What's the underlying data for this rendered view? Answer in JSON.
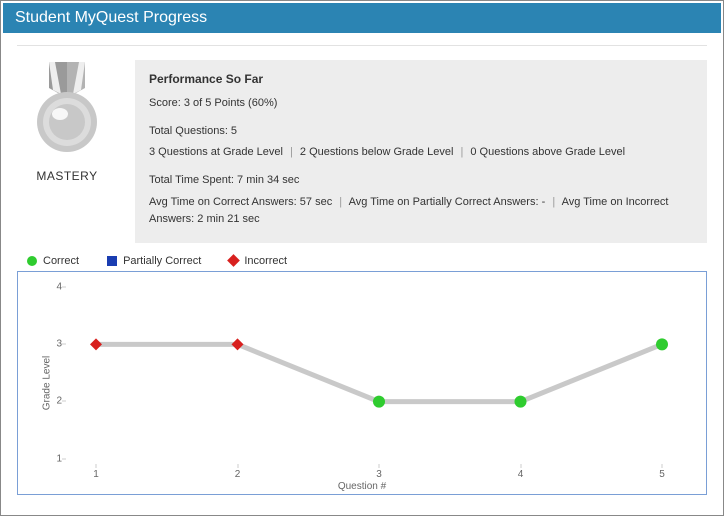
{
  "header": {
    "title": "Student MyQuest Progress"
  },
  "badge": {
    "label": "MASTERY",
    "ribbon_color": "#9a9a9a",
    "disc_outer": "#c8c8c8",
    "disc_inner": "#dcdcdc",
    "disc_shine": "#ffffff"
  },
  "performance": {
    "title": "Performance So Far",
    "score_line": "Score: 3 of 5 Points (60%)",
    "total_questions": "Total Questions: 5",
    "grade_breakdown": {
      "at": "3 Questions at Grade Level",
      "below": "2 Questions below Grade Level",
      "above": "0 Questions above Grade Level"
    },
    "time_total": "Total Time Spent: 7 min 34 sec",
    "time_correct": "Avg Time on Correct Answers: 57 sec",
    "time_partial": "Avg Time on Partially Correct Answers: -",
    "time_incorrect": "Avg Time on Incorrect Answers: 2 min 21 sec",
    "panel_bg": "#ededed"
  },
  "legend": {
    "items": [
      {
        "label": "Correct",
        "shape": "circle",
        "color": "#2fcc2f"
      },
      {
        "label": "Partially Correct",
        "shape": "square",
        "color": "#1a3db1"
      },
      {
        "label": "Incorrect",
        "shape": "diamond",
        "color": "#d8201e"
      }
    ]
  },
  "chart": {
    "type": "line-scatter",
    "x_label": "Question #",
    "y_label": "Grade Level",
    "xlim": [
      1,
      5
    ],
    "ylim": [
      1,
      4
    ],
    "yticks": [
      1,
      2,
      3,
      4
    ],
    "xticks": [
      1,
      2,
      3,
      4,
      5
    ],
    "line_color": "#c9c9c9",
    "line_width": 5,
    "marker_radius": 6,
    "border_color": "#7a9fd6",
    "background": "#ffffff",
    "tick_font_size": 10,
    "label_font_size": 10,
    "tick_color": "#666666",
    "points": [
      {
        "x": 1,
        "y": 3,
        "status": "incorrect",
        "color": "#d8201e",
        "shape": "diamond"
      },
      {
        "x": 2,
        "y": 3,
        "status": "incorrect",
        "color": "#d8201e",
        "shape": "diamond"
      },
      {
        "x": 3,
        "y": 2,
        "status": "correct",
        "color": "#2fcc2f",
        "shape": "circle"
      },
      {
        "x": 4,
        "y": 2,
        "status": "correct",
        "color": "#2fcc2f",
        "shape": "circle"
      },
      {
        "x": 5,
        "y": 3,
        "status": "correct",
        "color": "#2fcc2f",
        "shape": "circle"
      }
    ]
  }
}
